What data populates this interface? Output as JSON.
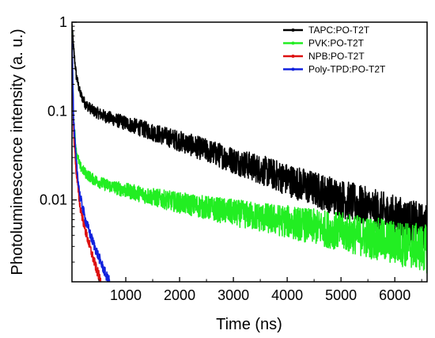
{
  "chart_data": {
    "type": "line",
    "xlabel": "Time (ns)",
    "ylabel": "Photoluminescence intensity (a. u.)",
    "x_scale": "linear",
    "y_scale": "log",
    "xlim": [
      0,
      6600
    ],
    "ylim": [
      0.0012,
      1.0
    ],
    "x_ticks": [
      1000,
      2000,
      3000,
      4000,
      5000,
      6000
    ],
    "x_tick_labels": [
      "1000",
      "2000",
      "3000",
      "4000",
      "5000",
      "6000"
    ],
    "y_ticks": [
      1,
      0.1,
      0.01
    ],
    "y_tick_labels": [
      "1",
      "0.1",
      "0.01"
    ],
    "grid": false,
    "legend_position": "top-right",
    "series": [
      {
        "name": "TAPC:PO-T2T",
        "color": "#000000",
        "x": [
          0,
          30,
          80,
          150,
          250,
          400,
          600,
          800,
          1000,
          1500,
          2000,
          2500,
          3000,
          3500,
          4000,
          4500,
          5000,
          5500,
          6000,
          6500,
          6600
        ],
        "y": [
          0.92,
          0.5,
          0.25,
          0.16,
          0.12,
          0.1,
          0.088,
          0.08,
          0.073,
          0.058,
          0.046,
          0.036,
          0.028,
          0.022,
          0.017,
          0.0133,
          0.0104,
          0.0081,
          0.0064,
          0.005,
          0.0048
        ]
      },
      {
        "name": "PVK:PO-T2T",
        "color": "#22ee22",
        "x": [
          0,
          30,
          80,
          150,
          250,
          400,
          600,
          800,
          1000,
          1500,
          2000,
          2500,
          3000,
          3500,
          4000,
          4500,
          5000,
          5500,
          6000,
          6500,
          6600
        ],
        "y": [
          0.7,
          0.08,
          0.035,
          0.024,
          0.02,
          0.017,
          0.015,
          0.0138,
          0.0128,
          0.0108,
          0.0093,
          0.0082,
          0.0072,
          0.0064,
          0.0057,
          0.005,
          0.0044,
          0.0038,
          0.0033,
          0.0029,
          0.0028
        ]
      },
      {
        "name": "NPB:PO-T2T",
        "color": "#dd1111",
        "x": [
          0,
          30,
          80,
          150,
          250,
          350,
          450,
          540
        ],
        "y": [
          0.6,
          0.06,
          0.02,
          0.0085,
          0.0045,
          0.0027,
          0.0017,
          0.0012
        ]
      },
      {
        "name": "Poly-TPD:PO-T2T",
        "color": "#1122dd",
        "x": [
          0,
          30,
          80,
          150,
          250,
          350,
          450,
          550,
          650,
          700
        ],
        "y": [
          0.8,
          0.08,
          0.026,
          0.011,
          0.006,
          0.0039,
          0.0027,
          0.0019,
          0.00135,
          0.0012
        ]
      }
    ]
  }
}
